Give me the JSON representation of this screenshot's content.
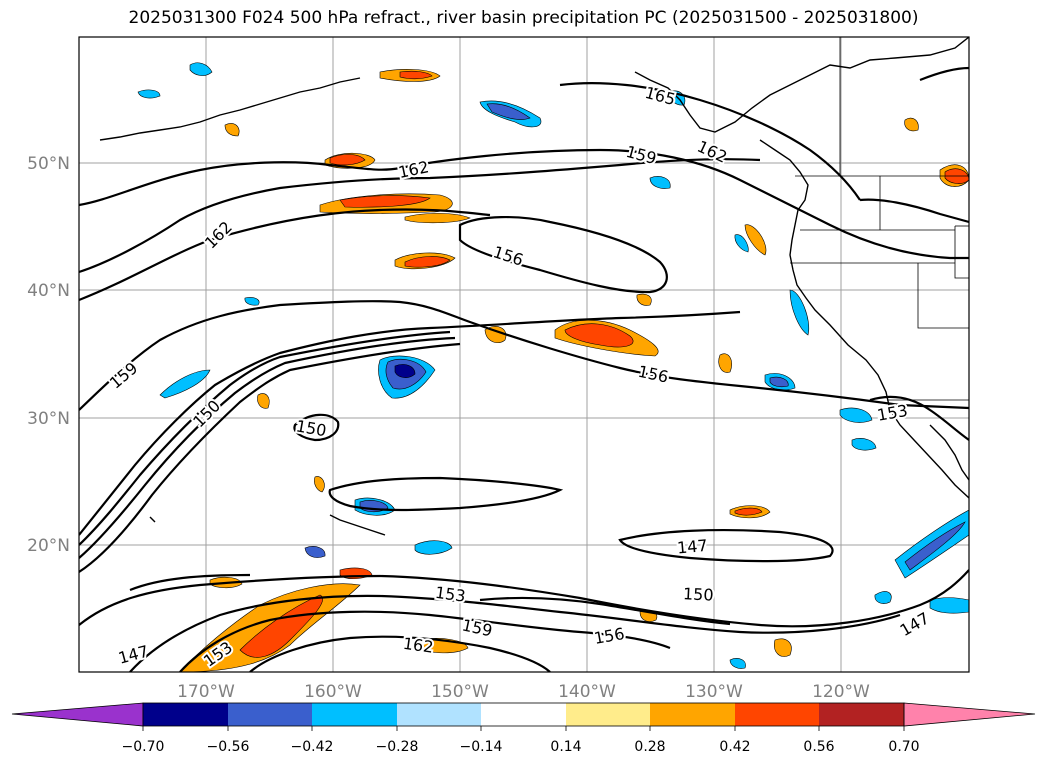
{
  "title": "2025031300 F024 500 hPa refract., river basin precipitation PC (2025031500 - 2025031800)",
  "map": {
    "lat_labels": [
      "50°N",
      "40°N",
      "30°N",
      "20°N"
    ],
    "lon_labels": [
      "170°W",
      "160°W",
      "150°W",
      "140°W",
      "130°W",
      "120°W"
    ],
    "contour_labels": [
      {
        "text": "162"
      },
      {
        "text": "162"
      },
      {
        "text": "162"
      },
      {
        "text": "162"
      },
      {
        "text": "159"
      },
      {
        "text": "159"
      },
      {
        "text": "159"
      },
      {
        "text": "156"
      },
      {
        "text": "156"
      },
      {
        "text": "156"
      },
      {
        "text": "150"
      },
      {
        "text": "150"
      },
      {
        "text": "150"
      },
      {
        "text": "153"
      },
      {
        "text": "153"
      },
      {
        "text": "153"
      },
      {
        "text": "147"
      },
      {
        "text": "147"
      },
      {
        "text": "147"
      },
      {
        "text": "165"
      }
    ]
  },
  "colorbar": {
    "colors": [
      "#9a32cd",
      "#00008b",
      "#3a5fcd",
      "#00bfff",
      "#b0e2ff",
      "#ffffff",
      "#ffec8b",
      "#ffa500",
      "#ff4500",
      "#b22222",
      "#ff82ab"
    ],
    "tick_labels": [
      "−0.70",
      "−0.56",
      "−0.42",
      "−0.28",
      "−0.14",
      "0.14",
      "0.28",
      "0.42",
      "0.56",
      "0.70"
    ]
  }
}
